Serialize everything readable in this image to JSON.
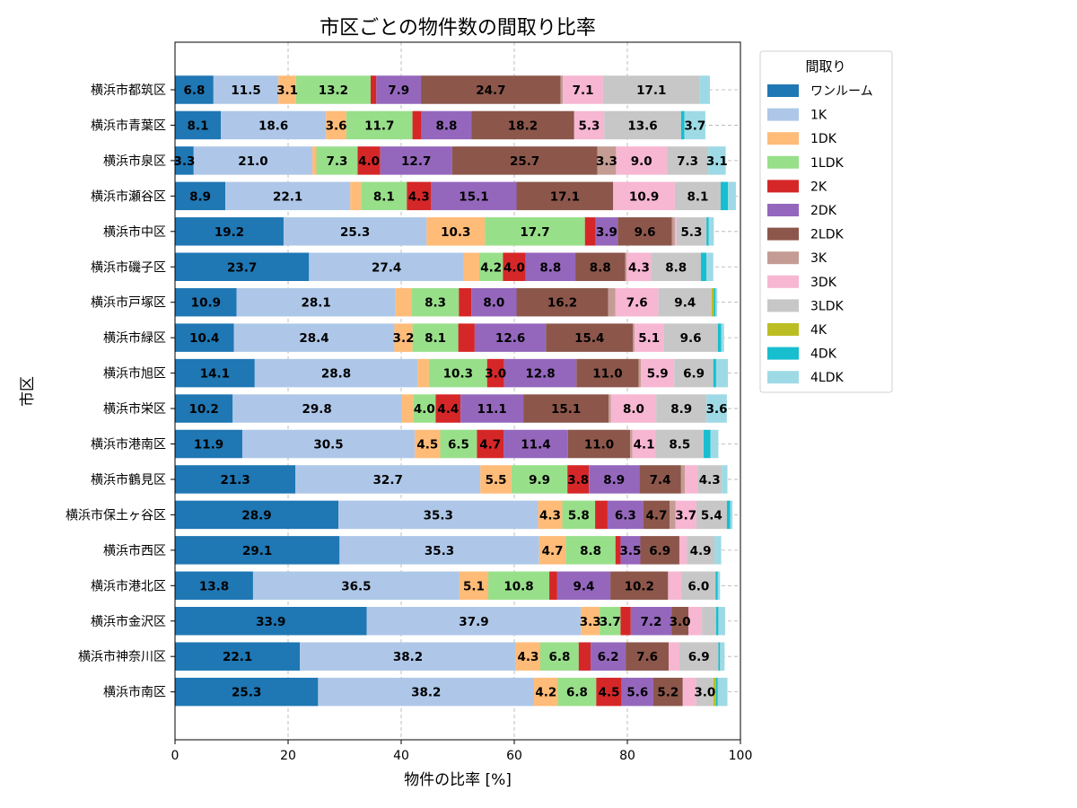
{
  "chart_data": {
    "type": "bar",
    "orientation": "horizontal",
    "stacked": true,
    "title": "市区ごとの物件数の間取り比率",
    "xlabel": "物件の比率 [%]",
    "ylabel": "市区",
    "xlim": [
      0,
      100
    ],
    "xticks": [
      0,
      20,
      40,
      60,
      80,
      100
    ],
    "grid": true,
    "legend_title": "間取り",
    "legend_position": "outside-right-top",
    "label_threshold": 3,
    "categories": [
      "横浜市都筑区",
      "横浜市青葉区",
      "横浜市泉区",
      "横浜市瀬谷区",
      "横浜市中区",
      "横浜市磯子区",
      "横浜市戸塚区",
      "横浜市緑区",
      "横浜市旭区",
      "横浜市栄区",
      "横浜市港南区",
      "横浜市鶴見区",
      "横浜市保土ヶ谷区",
      "横浜市西区",
      "横浜市港北区",
      "横浜市金沢区",
      "横浜市神奈川区",
      "横浜市南区"
    ],
    "series": [
      {
        "name": "ワンルーム",
        "color": "#1f77b4",
        "values": [
          6.8,
          8.1,
          3.3,
          8.9,
          19.2,
          23.7,
          10.9,
          10.4,
          14.1,
          10.2,
          11.9,
          21.3,
          28.9,
          29.1,
          13.8,
          33.9,
          22.1,
          25.3
        ]
      },
      {
        "name": "1K",
        "color": "#aec7e8",
        "values": [
          11.5,
          18.6,
          21.0,
          22.1,
          25.3,
          27.4,
          28.1,
          28.4,
          28.8,
          29.8,
          30.5,
          32.7,
          35.3,
          35.3,
          36.5,
          37.9,
          38.2,
          38.2
        ]
      },
      {
        "name": "1DK",
        "color": "#ffbb78",
        "values": [
          3.1,
          3.6,
          0.7,
          1.9,
          10.3,
          2.7,
          2.9,
          3.2,
          2.0,
          2.1,
          4.5,
          5.5,
          4.3,
          4.7,
          5.1,
          3.3,
          4.3,
          4.2
        ]
      },
      {
        "name": "1LDK",
        "color": "#98df8a",
        "values": [
          13.2,
          11.7,
          7.3,
          8.1,
          17.7,
          4.2,
          8.3,
          8.1,
          10.3,
          4.0,
          6.5,
          9.9,
          5.8,
          8.8,
          10.8,
          3.7,
          6.8,
          6.8
        ]
      },
      {
        "name": "2K",
        "color": "#d62728",
        "values": [
          1.0,
          1.6,
          4.0,
          4.3,
          1.9,
          4.0,
          2.2,
          2.9,
          3.0,
          4.4,
          4.7,
          3.8,
          2.2,
          0.9,
          1.4,
          1.8,
          2.1,
          4.5
        ]
      },
      {
        "name": "2DK",
        "color": "#9467bd",
        "values": [
          7.9,
          8.8,
          12.7,
          15.1,
          3.9,
          8.8,
          8.0,
          12.6,
          12.8,
          11.1,
          11.4,
          8.9,
          6.3,
          3.5,
          9.4,
          7.2,
          6.2,
          5.6
        ]
      },
      {
        "name": "2LDK",
        "color": "#8c564b",
        "values": [
          24.7,
          18.2,
          25.7,
          17.1,
          9.6,
          8.8,
          16.2,
          15.4,
          11.0,
          15.1,
          11.0,
          7.4,
          4.7,
          6.9,
          10.2,
          3.0,
          7.6,
          5.2
        ]
      },
      {
        "name": "3K",
        "color": "#c49c94",
        "values": [
          0.4,
          0.0,
          3.3,
          0.0,
          0.5,
          0.3,
          1.3,
          0.3,
          0.4,
          0.4,
          0.4,
          0.7,
          1.0,
          0.0,
          0.0,
          0.0,
          0.0,
          0.0
        ]
      },
      {
        "name": "3DK",
        "color": "#f7b6d2",
        "values": [
          7.1,
          5.3,
          9.0,
          10.9,
          0.3,
          4.3,
          7.6,
          5.1,
          5.9,
          8.0,
          4.1,
          2.2,
          3.7,
          1.3,
          2.4,
          2.4,
          1.9,
          2.4
        ]
      },
      {
        "name": "3LDK",
        "color": "#c7c7c7",
        "values": [
          17.1,
          13.6,
          7.3,
          8.1,
          5.3,
          8.8,
          9.4,
          9.6,
          6.9,
          8.9,
          8.5,
          4.3,
          5.4,
          4.9,
          6.0,
          2.5,
          6.9,
          3.0
        ]
      },
      {
        "name": "4K",
        "color": "#bcbd22",
        "values": [
          0.0,
          0.0,
          0.0,
          0.0,
          0.0,
          0.0,
          0.4,
          0.0,
          0.0,
          0.0,
          0.0,
          0.0,
          0.0,
          0.0,
          0.0,
          0.0,
          0.0,
          0.5
        ]
      },
      {
        "name": "4DK",
        "color": "#17becf",
        "values": [
          0.0,
          0.6,
          0.0,
          1.3,
          0.4,
          1.0,
          0.3,
          0.6,
          0.5,
          0.0,
          1.2,
          0.0,
          0.6,
          0.0,
          0.4,
          0.4,
          0.3,
          0.3
        ]
      },
      {
        "name": "4LDK",
        "color": "#9edae5",
        "values": [
          1.8,
          3.7,
          3.1,
          1.4,
          0.9,
          1.2,
          0.3,
          0.5,
          2.1,
          3.6,
          1.4,
          1.0,
          0.4,
          1.2,
          0.4,
          1.2,
          0.8,
          1.7
        ]
      }
    ]
  }
}
